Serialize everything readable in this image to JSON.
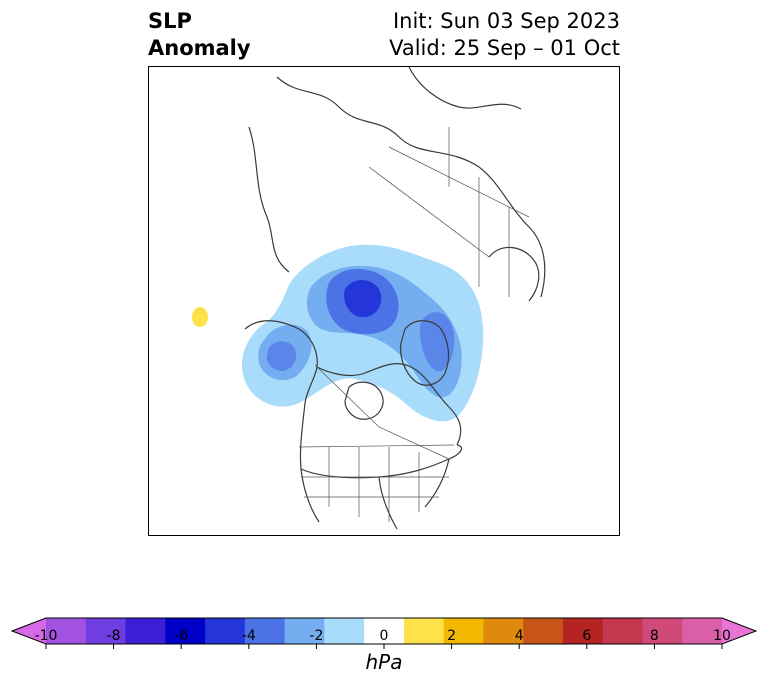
{
  "title": {
    "left_line1": "SLP",
    "left_line2": "Anomaly",
    "right_line1": "Init: Sun 03 Sep 2023",
    "right_line2": "Valid: 25 Sep – 01 Oct"
  },
  "map": {
    "projection": "polar stereographic (North America / Arctic)",
    "anomaly_features": [
      {
        "type": "low",
        "min_hpa": -5,
        "location": "Beaufort Sea / Canadian Arctic"
      },
      {
        "type": "low",
        "min_hpa": -3,
        "location": "Gulf of Alaska"
      },
      {
        "type": "low",
        "min_hpa": -3,
        "location": "Baffin Bay / Greenland"
      },
      {
        "type": "high",
        "max_hpa": 1,
        "location": "North Pacific"
      }
    ]
  },
  "colorbar": {
    "units": "hPa",
    "ticks": [
      "-10",
      "-8",
      "-6",
      "-4",
      "-2",
      "0",
      "2",
      "4",
      "6",
      "8",
      "10"
    ],
    "tick_values": [
      -10,
      -8,
      -6,
      -4,
      -2,
      0,
      2,
      4,
      6,
      8,
      10
    ],
    "colors": [
      "#d66ae6",
      "#a252e0",
      "#6f3ee0",
      "#3a1fd6",
      "#0000c8",
      "#2435d9",
      "#4b73e6",
      "#74aef0",
      "#a9dcfb",
      "#ffffff",
      "#ffe14a",
      "#f2b800",
      "#e08a0d",
      "#c85418",
      "#b42422",
      "#c3384e",
      "#cf4a78",
      "#db5fa8",
      "#e874d8"
    ]
  }
}
